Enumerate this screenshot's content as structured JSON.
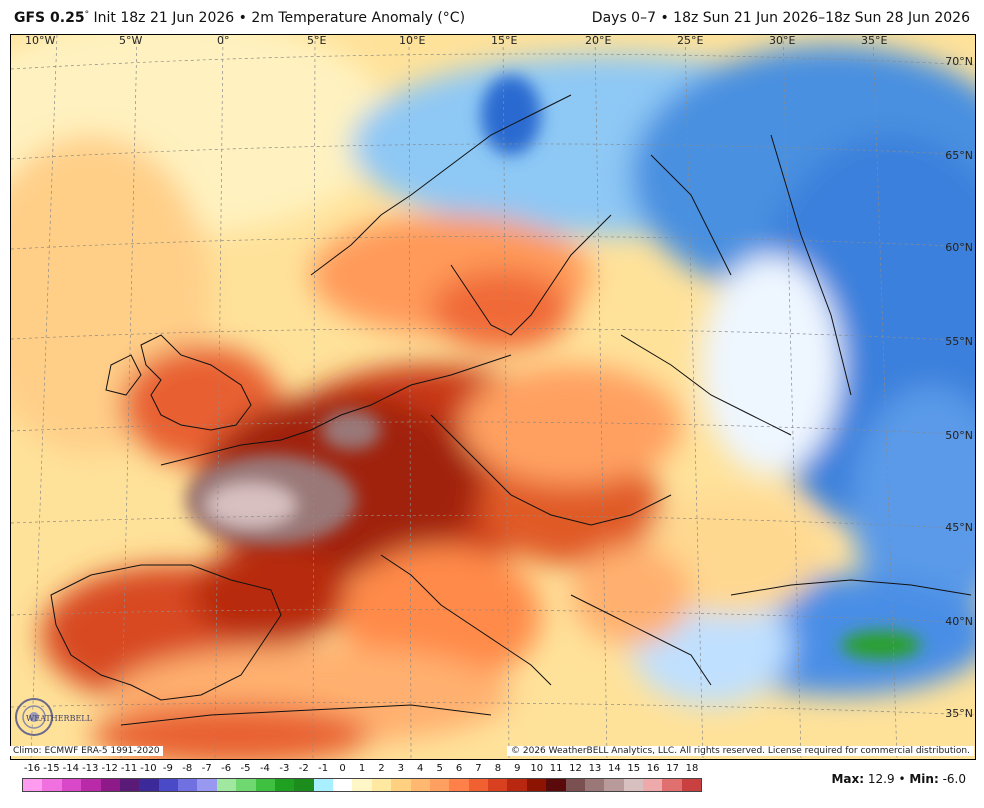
{
  "header": {
    "model": "GFS 0.25",
    "init": "Init 18z 21 Jun 2026",
    "bullet": "•",
    "field": "2m Temperature Anomaly (°C)",
    "period": "Days 0–7 • 18z Sun 21 Jun 2026–18z Sun 28 Jun 2026"
  },
  "map": {
    "lon_labels": [
      "10°W",
      "5°W",
      "0°",
      "5°E",
      "10°E",
      "15°E",
      "20°E",
      "25°E",
      "30°E",
      "35°E"
    ],
    "lat_labels": [
      "70°N",
      "65°N",
      "60°N",
      "55°N",
      "50°N",
      "45°N",
      "40°N",
      "35°N"
    ]
  },
  "footer": {
    "climo": "Climo: ECMWF ERA-5 1991-2020",
    "copyright": "© 2026 WeatherBELL Analytics, LLC. All rights reserved. License required for commercial distribution.",
    "logo_text": "WEATHERBELL"
  },
  "colorbar": {
    "labels": [
      "-16",
      "-15",
      "-14",
      "-13",
      "-12",
      "-11",
      "-10",
      "-9",
      "-8",
      "-7",
      "-6",
      "-5",
      "-4",
      "-3",
      "-2",
      "-1",
      "0",
      "1",
      "2",
      "3",
      "4",
      "5",
      "6",
      "7",
      "8",
      "9",
      "10",
      "11",
      "12",
      "13",
      "14",
      "15",
      "16",
      "17",
      "18"
    ],
    "colors": [
      "#ff9cf0",
      "#f070e0",
      "#d848c8",
      "#b82aa8",
      "#8e1a8a",
      "#5a1a78",
      "#3c2a9a",
      "#4a4ac8",
      "#7070e0",
      "#9898f0",
      "#a0e8a0",
      "#70d870",
      "#40c040",
      "#20a020",
      "#1c8c1c",
      "#a8f0ff",
      "#ffffff",
      "#fff6c8",
      "#ffe8a0",
      "#ffd080",
      "#ffb870",
      "#ffa060",
      "#ff8048",
      "#f06030",
      "#d84020",
      "#b82810",
      "#8c1400",
      "#5a0a0a",
      "#7a5050",
      "#9a7878",
      "#b89a9a",
      "#d8c0c0",
      "#eeaaaa",
      "#e07070",
      "#c84040"
    ]
  },
  "stats": {
    "max_label": "Max:",
    "max_value": "12.9",
    "bullet": "•",
    "min_label": "Min:",
    "min_value": "-6.0"
  }
}
